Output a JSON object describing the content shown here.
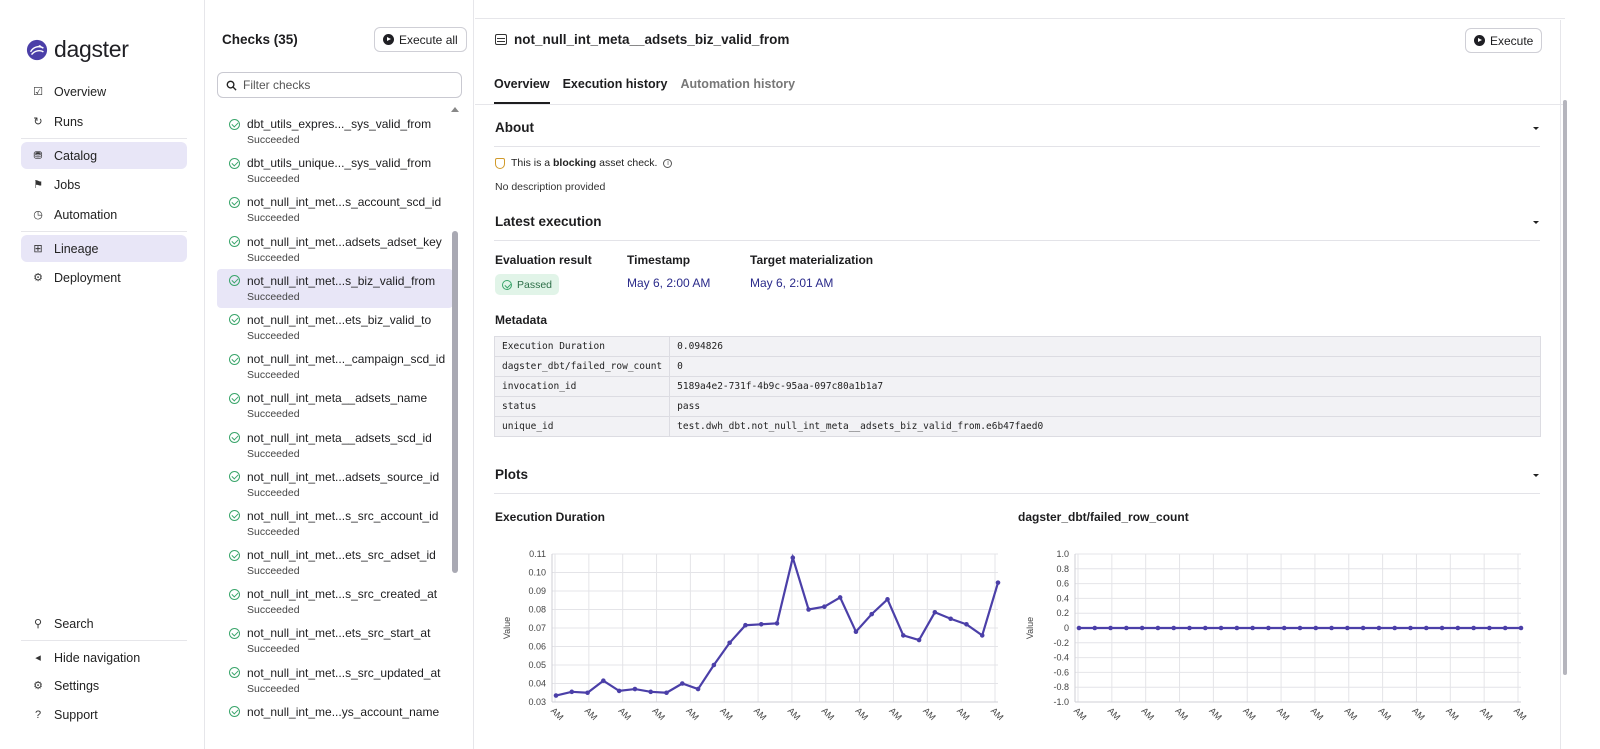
{
  "brand": {
    "name": "dagster"
  },
  "nav": {
    "items": [
      {
        "label": "Overview",
        "icon": "overview-icon",
        "glyph": "☑"
      },
      {
        "label": "Runs",
        "icon": "runs-icon",
        "glyph": "↻"
      },
      {
        "label": "Catalog",
        "icon": "catalog-icon",
        "glyph": "⛃"
      },
      {
        "label": "Jobs",
        "icon": "jobs-icon",
        "glyph": "⚑"
      },
      {
        "label": "Automation",
        "icon": "automation-icon",
        "glyph": "◷"
      },
      {
        "label": "Lineage",
        "icon": "lineage-icon",
        "glyph": "⊞"
      },
      {
        "label": "Deployment",
        "icon": "deployment-icon",
        "glyph": "⚙"
      }
    ],
    "bottom": [
      {
        "label": "Search",
        "icon": "search-icon",
        "glyph": "⚲"
      },
      {
        "label": "Hide navigation",
        "icon": "hide-nav-icon",
        "glyph": "◂"
      },
      {
        "label": "Settings",
        "icon": "settings-icon",
        "glyph": "⚙"
      },
      {
        "label": "Support",
        "icon": "support-icon",
        "glyph": "?"
      }
    ]
  },
  "checks": {
    "title": "Checks (35)",
    "execute_all_label": "Execute all",
    "filter_placeholder": "Filter checks",
    "items": [
      {
        "name": "dbt_utils_expres..._sys_valid_from",
        "status": "Succeeded"
      },
      {
        "name": "dbt_utils_unique..._sys_valid_from",
        "status": "Succeeded"
      },
      {
        "name": "not_null_int_met...s_account_scd_id",
        "status": "Succeeded"
      },
      {
        "name": "not_null_int_met...adsets_adset_key",
        "status": "Succeeded"
      },
      {
        "name": "not_null_int_met...s_biz_valid_from",
        "status": "Succeeded"
      },
      {
        "name": "not_null_int_met...ets_biz_valid_to",
        "status": "Succeeded"
      },
      {
        "name": "not_null_int_met..._campaign_scd_id",
        "status": "Succeeded"
      },
      {
        "name": "not_null_int_meta__adsets_name",
        "status": "Succeeded"
      },
      {
        "name": "not_null_int_meta__adsets_scd_id",
        "status": "Succeeded"
      },
      {
        "name": "not_null_int_met...adsets_source_id",
        "status": "Succeeded"
      },
      {
        "name": "not_null_int_met...s_src_account_id",
        "status": "Succeeded"
      },
      {
        "name": "not_null_int_met...ets_src_adset_id",
        "status": "Succeeded"
      },
      {
        "name": "not_null_int_met...s_src_created_at",
        "status": "Succeeded"
      },
      {
        "name": "not_null_int_met...ets_src_start_at",
        "status": "Succeeded"
      },
      {
        "name": "not_null_int_met...s_src_updated_at",
        "status": "Succeeded"
      },
      {
        "name": "not_null_int_me...ys_account_name",
        "status": ""
      }
    ]
  },
  "main": {
    "title": "not_null_int_meta__adsets_biz_valid_from",
    "execute_label": "Execute",
    "tabs": [
      "Overview",
      "Execution history",
      "Automation history"
    ],
    "about": {
      "title": "About",
      "blocking_prefix": "This is a ",
      "blocking_bold": "blocking",
      "blocking_suffix": " asset check.",
      "description": "No description provided"
    },
    "latest": {
      "title": "Latest execution",
      "eval_label": "Evaluation result",
      "eval_value": "Passed",
      "timestamp_label": "Timestamp",
      "timestamp_value": "May 6, 2:00 AM",
      "target_label": "Target materialization",
      "target_value": "May 6, 2:01 AM"
    },
    "metadata": {
      "title": "Metadata",
      "rows": [
        {
          "key": "Execution Duration",
          "value": "0.094826"
        },
        {
          "key": "dagster_dbt/failed_row_count",
          "value": "0"
        },
        {
          "key": "invocation_id",
          "value": "5189a4e2-731f-4b9c-95aa-097c80a1b1a7"
        },
        {
          "key": "status",
          "value": "pass"
        },
        {
          "key": "unique_id",
          "value": "test.dwh_dbt.not_null_int_meta__adsets_biz_valid_from.e6b47faed0"
        }
      ]
    },
    "plots": {
      "title": "Plots"
    }
  },
  "chart_data": [
    {
      "type": "line",
      "title": "Execution Duration",
      "ylabel": "Value",
      "ylim": [
        0.03,
        0.11
      ],
      "yticks": [
        0.03,
        0.04,
        0.05,
        0.06,
        0.07,
        0.08,
        0.09,
        0.1,
        0.11
      ],
      "ytick_labels": [
        "0.03",
        "0.04",
        "0.05",
        "0.06",
        "0.07",
        "0.08",
        "0.09",
        "0.10",
        "0.11"
      ],
      "xtick_label": "AM",
      "xtick_count": 14,
      "color": "#4b3fa8",
      "series": [
        {
          "values": [
            0.0335,
            0.0355,
            0.035,
            0.0415,
            0.036,
            0.037,
            0.0355,
            0.035,
            0.04,
            0.037,
            0.05,
            0.062,
            0.0715,
            0.072,
            0.0725,
            0.108,
            0.08,
            0.0815,
            0.0865,
            0.068,
            0.0775,
            0.0855,
            0.066,
            0.0635,
            0.0785,
            0.075,
            0.072,
            0.066,
            0.0945
          ]
        }
      ]
    },
    {
      "type": "line",
      "title": "dagster_dbt/failed_row_count",
      "ylabel": "Value",
      "ylim": [
        -1.0,
        1.0
      ],
      "yticks": [
        -1.0,
        -0.8,
        -0.6,
        -0.4,
        -0.2,
        0,
        0.2,
        0.4,
        0.6,
        0.8,
        1.0
      ],
      "ytick_labels": [
        "-1.0",
        "-0.8",
        "-0.6",
        "-0.4",
        "-0.2",
        "0",
        "0.2",
        "0.4",
        "0.6",
        "0.8",
        "1.0"
      ],
      "xtick_label": "AM",
      "xtick_count": 14,
      "color": "#4b3fa8",
      "series": [
        {
          "values": [
            0,
            0,
            0,
            0,
            0,
            0,
            0,
            0,
            0,
            0,
            0,
            0,
            0,
            0,
            0,
            0,
            0,
            0,
            0,
            0,
            0,
            0,
            0,
            0,
            0,
            0,
            0,
            0,
            0
          ]
        }
      ]
    }
  ]
}
